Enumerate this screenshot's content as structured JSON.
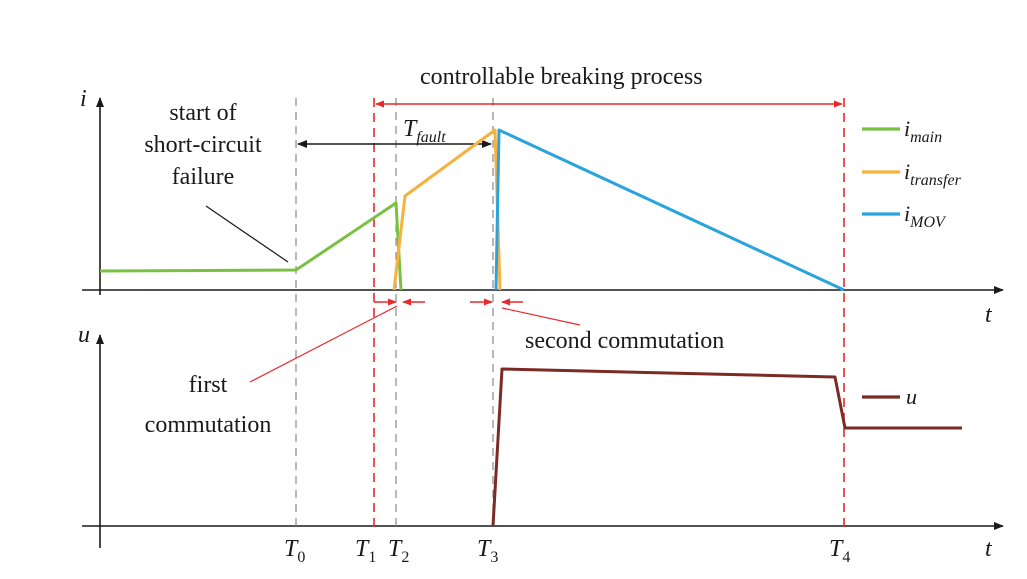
{
  "colors": {
    "main": "#7ac143",
    "transfer": "#f7b13d",
    "mov": "#2aa3de",
    "voltage": "#7b2b24",
    "redline": "#e8282a",
    "axis": "#1a1a1a",
    "dash_gray": "#888888"
  },
  "top_axis": {
    "y_label": "i",
    "x_label": "t"
  },
  "bottom_axis": {
    "y_label": "u",
    "x_label": "t"
  },
  "annotations": {
    "process_label": "controllable breaking process",
    "start_line1": "start of",
    "start_line2": "short-circuit",
    "start_line3": "failure",
    "tfault_main": "T",
    "tfault_sub": "fault",
    "first_line1": "first",
    "first_line2": "commutation",
    "second": "second commutation"
  },
  "time_marks": [
    {
      "main": "T",
      "sub": "0"
    },
    {
      "main": "T",
      "sub": "1"
    },
    {
      "main": "T",
      "sub": "2"
    },
    {
      "main": "T",
      "sub": "3"
    },
    {
      "main": "T",
      "sub": "4"
    }
  ],
  "legend": [
    {
      "main": "i",
      "sub": "main",
      "color_key": "main"
    },
    {
      "main": "i",
      "sub": "transfer",
      "color_key": "transfer"
    },
    {
      "main": "i",
      "sub": "MOV",
      "color_key": "mov"
    },
    {
      "main": "u",
      "sub": "",
      "color_key": "voltage"
    }
  ]
}
